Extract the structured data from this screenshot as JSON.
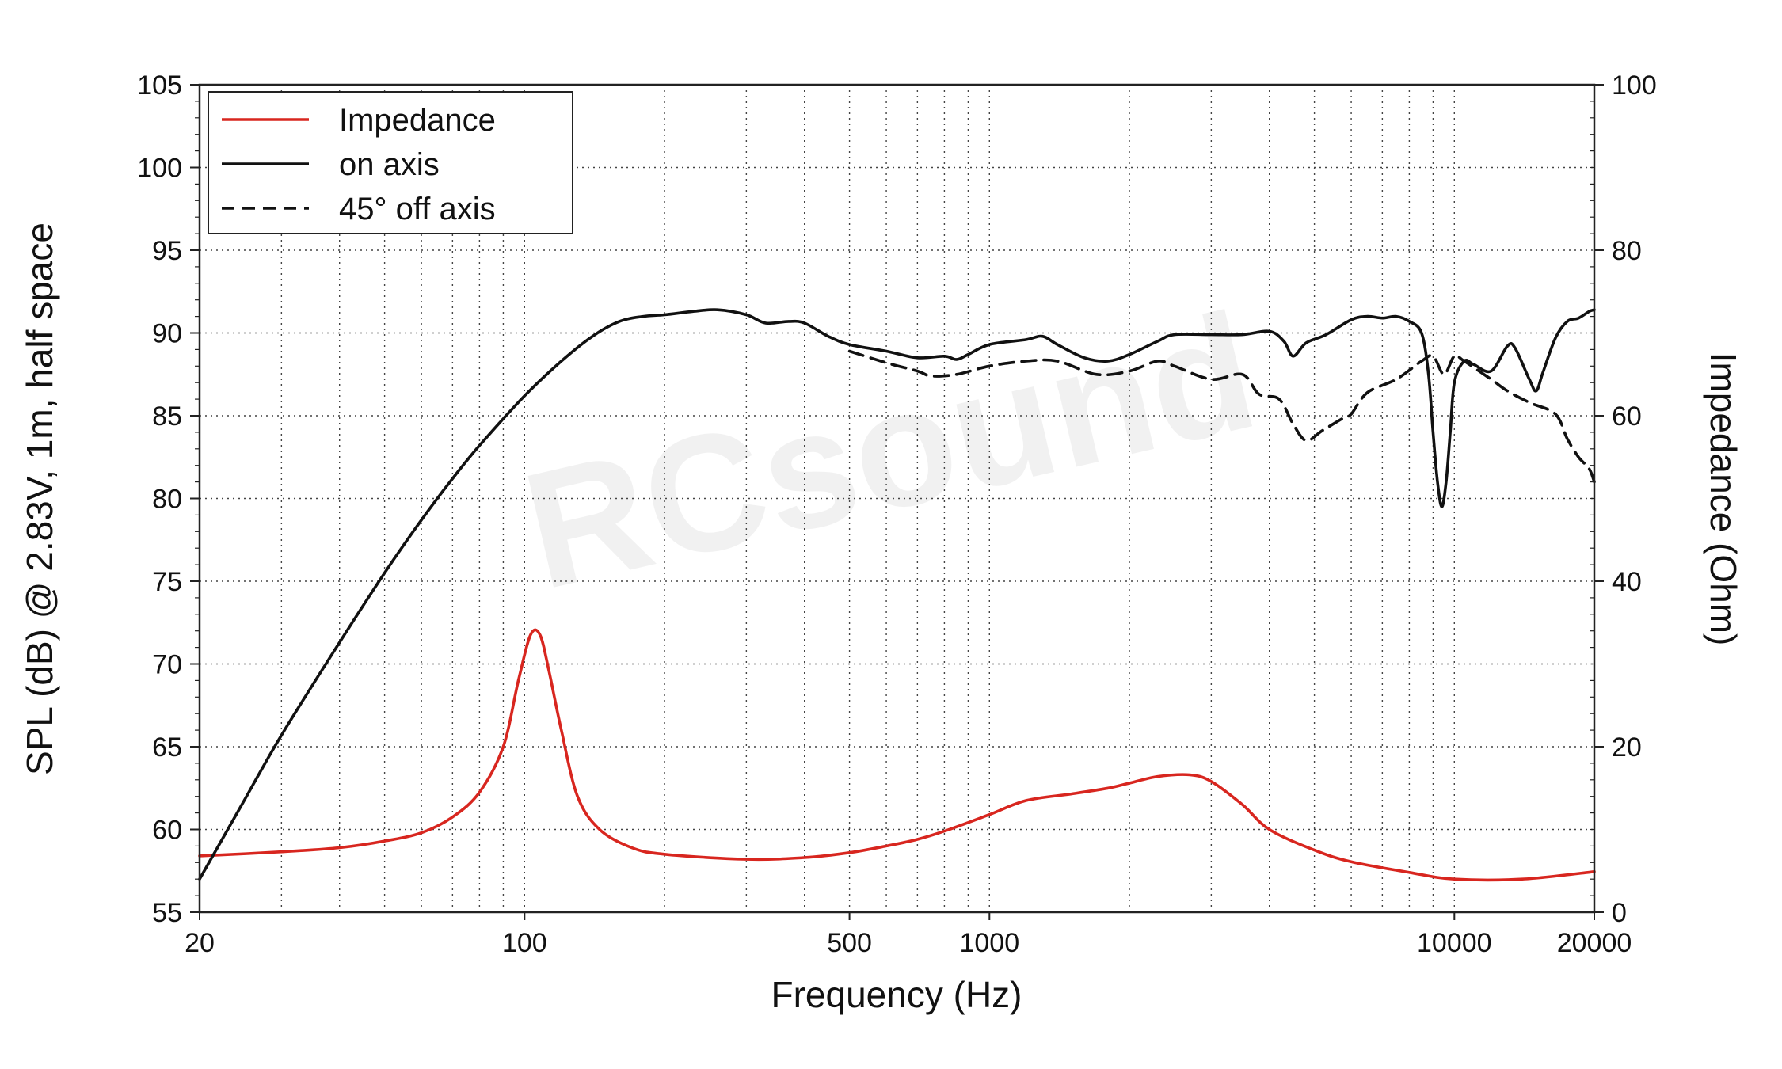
{
  "chart_data": {
    "type": "line",
    "watermark": "RCsound",
    "xlabel": "Frequency (Hz)",
    "ylabel": "SPL (dB) @ 2.83V, 1m, half space",
    "y2label": "Impedance (Ohm)",
    "xscale": "log",
    "xlim": [
      20,
      20000
    ],
    "ylim": [
      55,
      105
    ],
    "y2lim": [
      0,
      100
    ],
    "grid": true,
    "legend_position": "top-left",
    "x_ticks": [
      "20",
      "100",
      "500",
      "1000",
      "10000",
      "20000"
    ],
    "y_ticks": [
      "55",
      "60",
      "65",
      "70",
      "75",
      "80",
      "85",
      "90",
      "95",
      "100",
      "105"
    ],
    "y2_ticks": [
      "0",
      "20",
      "40",
      "60",
      "80",
      "100"
    ],
    "series": [
      {
        "name": "Impedance",
        "axis": "right",
        "color": "#d8261f",
        "style": "solid",
        "points": [
          [
            20,
            6.8
          ],
          [
            30,
            7.3
          ],
          [
            40,
            7.8
          ],
          [
            50,
            8.6
          ],
          [
            60,
            9.6
          ],
          [
            70,
            11.5
          ],
          [
            80,
            14.5
          ],
          [
            90,
            20
          ],
          [
            97,
            28
          ],
          [
            103,
            33.5
          ],
          [
            108,
            33.5
          ],
          [
            113,
            29
          ],
          [
            120,
            22
          ],
          [
            130,
            14
          ],
          [
            145,
            10
          ],
          [
            170,
            7.8
          ],
          [
            200,
            7
          ],
          [
            300,
            6.4
          ],
          [
            400,
            6.6
          ],
          [
            500,
            7.2
          ],
          [
            600,
            8
          ],
          [
            700,
            8.8
          ],
          [
            800,
            9.8
          ],
          [
            1000,
            11.8
          ],
          [
            1200,
            13.5
          ],
          [
            1500,
            14.3
          ],
          [
            1800,
            15
          ],
          [
            2000,
            15.6
          ],
          [
            2300,
            16.4
          ],
          [
            2700,
            16.6
          ],
          [
            3000,
            15.8
          ],
          [
            3500,
            13
          ],
          [
            4000,
            10
          ],
          [
            5000,
            7.5
          ],
          [
            6000,
            6.1
          ],
          [
            8000,
            4.8
          ],
          [
            10000,
            4
          ],
          [
            14000,
            4
          ],
          [
            20000,
            4.9
          ]
        ]
      },
      {
        "name": "on axis",
        "axis": "left",
        "color": "#111111",
        "style": "solid",
        "points": [
          [
            20,
            57
          ],
          [
            25,
            61.8
          ],
          [
            30,
            65.7
          ],
          [
            40,
            71.3
          ],
          [
            50,
            75.5
          ],
          [
            60,
            78.7
          ],
          [
            70,
            81.2
          ],
          [
            80,
            83.2
          ],
          [
            100,
            86.2
          ],
          [
            120,
            88.3
          ],
          [
            140,
            89.8
          ],
          [
            160,
            90.7
          ],
          [
            180,
            91
          ],
          [
            200,
            91.1
          ],
          [
            230,
            91.3
          ],
          [
            260,
            91.4
          ],
          [
            300,
            91.1
          ],
          [
            330,
            90.6
          ],
          [
            370,
            90.7
          ],
          [
            400,
            90.6
          ],
          [
            450,
            89.8
          ],
          [
            500,
            89.3
          ],
          [
            600,
            88.9
          ],
          [
            700,
            88.5
          ],
          [
            800,
            88.6
          ],
          [
            850,
            88.4
          ],
          [
            900,
            88.7
          ],
          [
            1000,
            89.3
          ],
          [
            1200,
            89.6
          ],
          [
            1300,
            89.8
          ],
          [
            1400,
            89.3
          ],
          [
            1600,
            88.5
          ],
          [
            1800,
            88.3
          ],
          [
            2000,
            88.7
          ],
          [
            2300,
            89.5
          ],
          [
            2500,
            89.9
          ],
          [
            3000,
            89.9
          ],
          [
            3500,
            89.9
          ],
          [
            4000,
            90.1
          ],
          [
            4300,
            89.5
          ],
          [
            4500,
            88.6
          ],
          [
            4800,
            89.4
          ],
          [
            5300,
            89.9
          ],
          [
            6000,
            90.8
          ],
          [
            6500,
            91
          ],
          [
            7000,
            90.9
          ],
          [
            7500,
            91
          ],
          [
            8000,
            90.7
          ],
          [
            8500,
            90
          ],
          [
            8800,
            87.5
          ],
          [
            9000,
            84
          ],
          [
            9200,
            81
          ],
          [
            9400,
            79.5
          ],
          [
            9600,
            81
          ],
          [
            9800,
            84
          ],
          [
            10000,
            87
          ],
          [
            10500,
            88.3
          ],
          [
            11000,
            88.1
          ],
          [
            12000,
            87.7
          ],
          [
            13000,
            89.2
          ],
          [
            13500,
            89.1
          ],
          [
            14500,
            87.2
          ],
          [
            15000,
            86.5
          ],
          [
            15500,
            87.6
          ],
          [
            16500,
            89.7
          ],
          [
            17500,
            90.7
          ],
          [
            18500,
            90.9
          ],
          [
            19500,
            91.3
          ],
          [
            20000,
            91.4
          ]
        ]
      },
      {
        "name": "45° off axis",
        "axis": "left",
        "color": "#111111",
        "style": "dashed",
        "points": [
          [
            500,
            88.9
          ],
          [
            600,
            88.2
          ],
          [
            700,
            87.7
          ],
          [
            750,
            87.4
          ],
          [
            850,
            87.5
          ],
          [
            1000,
            88
          ],
          [
            1200,
            88.3
          ],
          [
            1400,
            88.3
          ],
          [
            1700,
            87.5
          ],
          [
            2000,
            87.7
          ],
          [
            2300,
            88.3
          ],
          [
            2500,
            88
          ],
          [
            3000,
            87.2
          ],
          [
            3500,
            87.5
          ],
          [
            3800,
            86.3
          ],
          [
            4200,
            86
          ],
          [
            4500,
            84.5
          ],
          [
            4800,
            83.5
          ],
          [
            5200,
            84.1
          ],
          [
            5800,
            84.9
          ],
          [
            6000,
            85.1
          ],
          [
            6500,
            86.4
          ],
          [
            7500,
            87.2
          ],
          [
            8500,
            88.3
          ],
          [
            9000,
            88.6
          ],
          [
            9500,
            87.5
          ],
          [
            10000,
            88.6
          ],
          [
            10500,
            88.3
          ],
          [
            12000,
            87.2
          ],
          [
            13000,
            86.5
          ],
          [
            14500,
            85.8
          ],
          [
            16500,
            85.1
          ],
          [
            17500,
            83.6
          ],
          [
            18500,
            82.5
          ],
          [
            19500,
            81.8
          ],
          [
            20000,
            81
          ]
        ]
      }
    ]
  }
}
